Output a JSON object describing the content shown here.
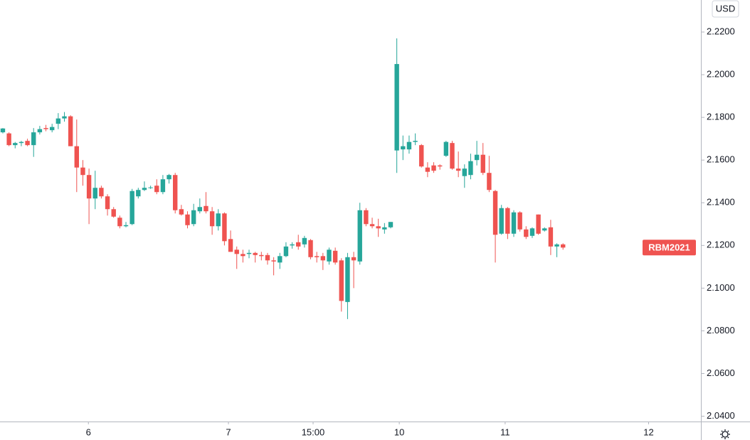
{
  "chart_data": {
    "type": "candlestick",
    "currency": "USD",
    "symbol": "RBM2021",
    "up_color": "#26a69a",
    "down_color": "#ef5350",
    "x": [
      0,
      1,
      2,
      3,
      4,
      5,
      6,
      7,
      8,
      9,
      10,
      11,
      12,
      13,
      14,
      15,
      16,
      17,
      18,
      19,
      20,
      21,
      22,
      23,
      24,
      25,
      26,
      27,
      28,
      29,
      30,
      31,
      32,
      33,
      34,
      35,
      36,
      37,
      38,
      39,
      40,
      41,
      42,
      43,
      44,
      45,
      46,
      47,
      48,
      49,
      50,
      51,
      52,
      53,
      54,
      55,
      56,
      57,
      58,
      59,
      60,
      61,
      62,
      63,
      64,
      65,
      66,
      67,
      68,
      69,
      70,
      71,
      72,
      73,
      74,
      75,
      76,
      77,
      78,
      79,
      80,
      81,
      82,
      83,
      84,
      85,
      86,
      87,
      88,
      89,
      90,
      91
    ],
    "open": [
      2.173,
      2.1725,
      2.167,
      2.168,
      2.169,
      2.167,
      2.173,
      2.175,
      2.174,
      2.177,
      2.1795,
      2.1805,
      2.1665,
      2.1565,
      2.153,
      2.142,
      2.147,
      2.143,
      2.137,
      2.133,
      2.129,
      2.13,
      2.143,
      2.146,
      2.147,
      2.148,
      2.145,
      2.151,
      2.153,
      2.137,
      2.1345,
      2.13,
      2.136,
      2.1385,
      2.136,
      2.129,
      2.135,
      2.123,
      2.118,
      2.116,
      2.116,
      2.1165,
      2.1155,
      2.1155,
      2.113,
      2.112,
      2.115,
      2.12,
      2.1215,
      2.1205,
      2.1225,
      2.115,
      2.115,
      2.1125,
      2.1175,
      2.113,
      2.0935,
      2.1145,
      2.1125,
      2.1365,
      2.13,
      2.129,
      2.1275,
      2.1285,
      2.1645,
      2.165,
      2.165,
      2.1685,
      2.167,
      2.1565,
      2.1575,
      2.1575,
      2.162,
      2.168,
      2.156,
      2.1525,
      2.153,
      2.16,
      2.1625,
      2.154,
      2.1455,
      2.1255,
      2.1375,
      2.1255,
      2.1355,
      2.1275,
      2.1245,
      2.1345,
      2.127,
      2.1285,
      2.1195,
      2.1205
    ],
    "high": [
      2.175,
      2.173,
      2.1685,
      2.169,
      2.17,
      2.175,
      2.176,
      2.1765,
      2.177,
      2.182,
      2.1825,
      2.181,
      2.179,
      2.16,
      2.156,
      2.155,
      2.148,
      2.144,
      2.138,
      2.134,
      2.131,
      2.1465,
      2.147,
      2.15,
      2.148,
      2.151,
      2.153,
      2.1535,
      2.154,
      2.139,
      2.136,
      2.1395,
      2.142,
      2.145,
      2.138,
      2.137,
      2.1355,
      2.127,
      2.1195,
      2.118,
      2.118,
      2.117,
      2.117,
      2.1165,
      2.1145,
      2.1165,
      2.1215,
      2.1215,
      2.125,
      2.1245,
      2.123,
      2.117,
      2.1165,
      2.119,
      2.119,
      2.114,
      2.1165,
      2.117,
      2.14,
      2.1375,
      2.133,
      2.1325,
      2.1305,
      2.131,
      2.217,
      2.1715,
      2.1715,
      2.1725,
      2.1675,
      2.159,
      2.159,
      2.158,
      2.169,
      2.169,
      2.164,
      2.158,
      2.163,
      2.169,
      2.168,
      2.162,
      2.146,
      2.139,
      2.138,
      2.1365,
      2.136,
      2.129,
      2.1285,
      2.1345,
      2.1285,
      2.132,
      2.121,
      2.121
    ],
    "low": [
      2.1725,
      2.1665,
      2.1655,
      2.1665,
      2.1665,
      2.1615,
      2.172,
      2.1735,
      2.173,
      2.1745,
      2.178,
      2.1665,
      2.145,
      2.148,
      2.13,
      2.137,
      2.142,
      2.134,
      2.133,
      2.128,
      2.1285,
      2.1295,
      2.142,
      2.1455,
      2.1465,
      2.144,
      2.144,
      2.149,
      2.135,
      2.134,
      2.128,
      2.129,
      2.135,
      2.135,
      2.125,
      2.127,
      2.12,
      2.117,
      2.109,
      2.112,
      2.114,
      2.112,
      2.113,
      2.111,
      2.106,
      2.109,
      2.1145,
      2.1185,
      2.118,
      2.119,
      2.1135,
      2.112,
      2.1085,
      2.111,
      2.111,
      2.089,
      2.0855,
      2.1,
      2.111,
      2.129,
      2.128,
      2.124,
      2.1255,
      2.128,
      2.154,
      2.16,
      2.163,
      2.167,
      2.1565,
      2.152,
      2.154,
      2.1555,
      2.1615,
      2.1555,
      2.152,
      2.147,
      2.151,
      2.1575,
      2.153,
      2.145,
      2.112,
      2.125,
      2.123,
      2.124,
      2.1265,
      2.123,
      2.1235,
      2.125,
      2.1265,
      2.1155,
      2.1145,
      2.118
    ],
    "close": [
      2.1748,
      2.167,
      2.168,
      2.1685,
      2.167,
      2.173,
      2.1745,
      2.1745,
      2.1755,
      2.1795,
      2.1805,
      2.1665,
      2.1565,
      2.153,
      2.142,
      2.147,
      2.143,
      2.137,
      2.1335,
      2.129,
      2.1295,
      2.1455,
      2.146,
      2.147,
      2.1472,
      2.145,
      2.151,
      2.153,
      2.1365,
      2.1345,
      2.1295,
      2.1365,
      2.138,
      2.136,
      2.129,
      2.135,
      2.122,
      2.117,
      2.116,
      2.115,
      2.1165,
      2.1155,
      2.115,
      2.113,
      2.1125,
      2.115,
      2.1195,
      2.1205,
      2.1195,
      2.1235,
      2.1145,
      2.1145,
      2.113,
      2.118,
      2.112,
      2.094,
      2.1145,
      2.113,
      2.1365,
      2.13,
      2.129,
      2.128,
      2.1285,
      2.131,
      2.205,
      2.1665,
      2.1685,
      2.169,
      2.157,
      2.1545,
      2.155,
      2.157,
      2.1685,
      2.156,
      2.155,
      2.156,
      2.1595,
      2.1625,
      2.154,
      2.146,
      2.125,
      2.1375,
      2.1255,
      2.1355,
      2.1275,
      2.124,
      2.128,
      2.1255,
      2.128,
      2.1195,
      2.1205,
      2.119
    ],
    "xlim": [
      -0.46,
      113.4
    ],
    "xticks": [
      {
        "value": 13.9,
        "label": "6"
      },
      {
        "value": 36.65,
        "label": "7"
      },
      {
        "value": 50.4,
        "label": "15:00"
      },
      {
        "value": 64.4,
        "label": "10"
      },
      {
        "value": 81.6,
        "label": "11"
      },
      {
        "value": 104.9,
        "label": "12"
      }
    ],
    "ylim": [
      2.0375,
      2.235
    ],
    "yticks": [
      {
        "value": 2.04,
        "label": "2.0400"
      },
      {
        "value": 2.06,
        "label": "2.0600"
      },
      {
        "value": 2.08,
        "label": "2.0800"
      },
      {
        "value": 2.1,
        "label": "2.1000"
      },
      {
        "value": 2.12,
        "label": "2.1200"
      },
      {
        "value": 2.14,
        "label": "2.1400"
      },
      {
        "value": 2.16,
        "label": "2.1600"
      },
      {
        "value": 2.18,
        "label": "2.1800"
      },
      {
        "value": 2.2,
        "label": "2.2000"
      },
      {
        "value": 2.22,
        "label": "2.2200"
      }
    ]
  }
}
